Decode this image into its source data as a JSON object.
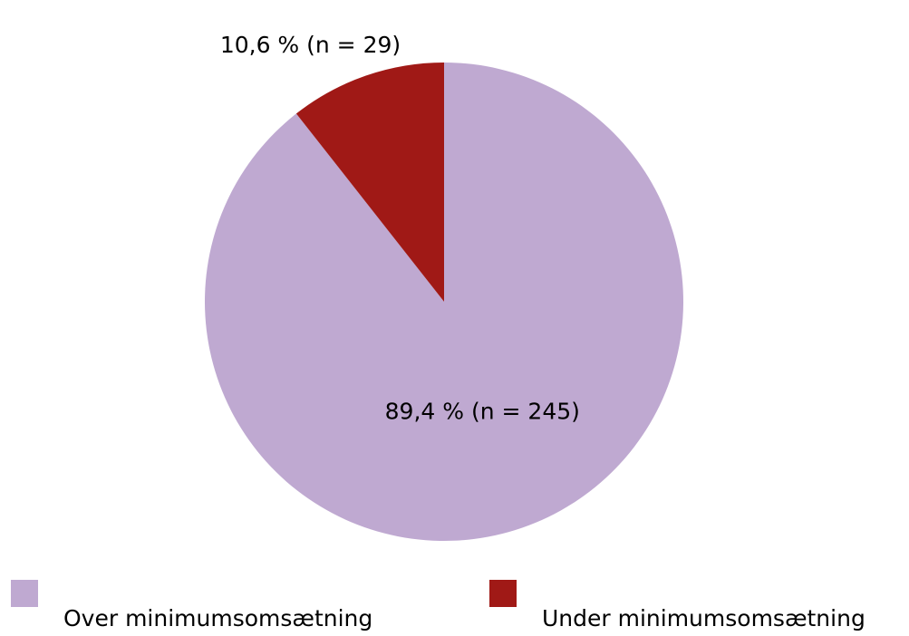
{
  "chart_data": {
    "type": "pie",
    "categories": [
      "Over minimumsomsætning",
      "Under minimumsomsætning"
    ],
    "values": [
      89.4,
      10.6
    ],
    "value_labels": [
      "89,4 % (n = 245)",
      "10,6 % (n = 29)"
    ],
    "colors": [
      "#bfa9d1",
      "#a01916"
    ],
    "legend": "bottom"
  }
}
